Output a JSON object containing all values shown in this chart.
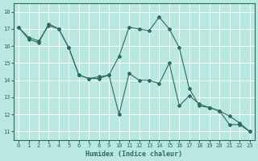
{
  "xlabel": "Humidex (Indice chaleur)",
  "bg_color": "#b8e8e0",
  "grid_color": "#ffffff",
  "line_color": "#2d6b60",
  "xlim": [
    -0.5,
    23.5
  ],
  "ylim": [
    10.5,
    18.5
  ],
  "xticks": [
    0,
    1,
    2,
    3,
    4,
    5,
    6,
    7,
    8,
    9,
    10,
    11,
    12,
    13,
    14,
    15,
    16,
    17,
    18,
    19,
    20,
    21,
    22,
    23
  ],
  "yticks": [
    11,
    12,
    13,
    14,
    15,
    16,
    17,
    18
  ],
  "series1_x": [
    0,
    1,
    2,
    3,
    4,
    5,
    6,
    7,
    8,
    9,
    10,
    11,
    12,
    13,
    14,
    15,
    16,
    17,
    18,
    19,
    20,
    21,
    22,
    23
  ],
  "series1_y": [
    17.1,
    16.4,
    16.2,
    17.3,
    17.0,
    15.9,
    14.3,
    14.1,
    14.1,
    14.3,
    15.4,
    17.1,
    17.0,
    16.9,
    17.7,
    17.0,
    15.9,
    13.5,
    12.5,
    12.4,
    12.2,
    11.4,
    11.4,
    11.0
  ],
  "series2_x": [
    0,
    1,
    2,
    3,
    4,
    5,
    6,
    7,
    8,
    9,
    10,
    11,
    12,
    13,
    14,
    15,
    16,
    17,
    18,
    19,
    20,
    21,
    22,
    23
  ],
  "series2_y": [
    17.1,
    16.5,
    16.3,
    17.2,
    17.0,
    15.9,
    14.3,
    14.1,
    14.2,
    14.3,
    12.0,
    14.4,
    14.0,
    14.0,
    13.8,
    15.0,
    12.5,
    13.1,
    12.6,
    12.4,
    12.2,
    11.9,
    11.5,
    11.0
  ]
}
